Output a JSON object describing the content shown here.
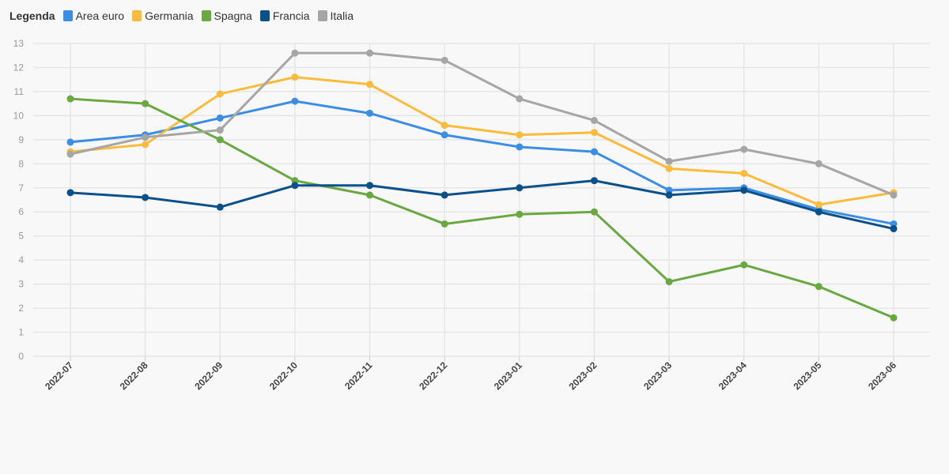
{
  "legend": {
    "title": "Legenda",
    "items": [
      {
        "label": "Area euro",
        "color": "#3b8ee4"
      },
      {
        "label": "Germania",
        "color": "#fbbb3c"
      },
      {
        "label": "Spagna",
        "color": "#6aa842"
      },
      {
        "label": "Francia",
        "color": "#0b5189"
      },
      {
        "label": "Italia",
        "color": "#a6a6a6"
      }
    ]
  },
  "chart_data": {
    "type": "line",
    "title": "",
    "xlabel": "",
    "ylabel": "",
    "categories": [
      "2022-07",
      "2022-08",
      "2022-09",
      "2022-10",
      "2022-11",
      "2022-12",
      "2023-01",
      "2023-02",
      "2023-03",
      "2023-04",
      "2023-05",
      "2023-06"
    ],
    "ylim": [
      0,
      13
    ],
    "yticks": [
      0,
      1,
      2,
      3,
      4,
      5,
      6,
      7,
      8,
      9,
      10,
      11,
      12,
      13
    ],
    "grid": true,
    "legend_position": "top-left",
    "series": [
      {
        "name": "Area euro",
        "color": "#3b8ee4",
        "values": [
          8.9,
          9.2,
          9.9,
          10.6,
          10.1,
          9.2,
          8.7,
          8.5,
          6.9,
          7.0,
          6.1,
          5.5
        ]
      },
      {
        "name": "Germania",
        "color": "#fbbb3c",
        "values": [
          8.5,
          8.8,
          10.9,
          11.6,
          11.3,
          9.6,
          9.2,
          9.3,
          7.8,
          7.6,
          6.3,
          6.8
        ]
      },
      {
        "name": "Spagna",
        "color": "#6aa842",
        "values": [
          10.7,
          10.5,
          9.0,
          7.3,
          6.7,
          5.5,
          5.9,
          6.0,
          3.1,
          3.8,
          2.9,
          1.6
        ]
      },
      {
        "name": "Francia",
        "color": "#0b5189",
        "values": [
          6.8,
          6.6,
          6.2,
          7.1,
          7.1,
          6.7,
          7.0,
          7.3,
          6.7,
          6.9,
          6.0,
          5.3
        ]
      },
      {
        "name": "Italia",
        "color": "#a6a6a6",
        "values": [
          8.4,
          9.1,
          9.4,
          12.6,
          12.6,
          12.3,
          10.7,
          9.8,
          8.1,
          8.6,
          8.0,
          6.7
        ]
      }
    ]
  }
}
